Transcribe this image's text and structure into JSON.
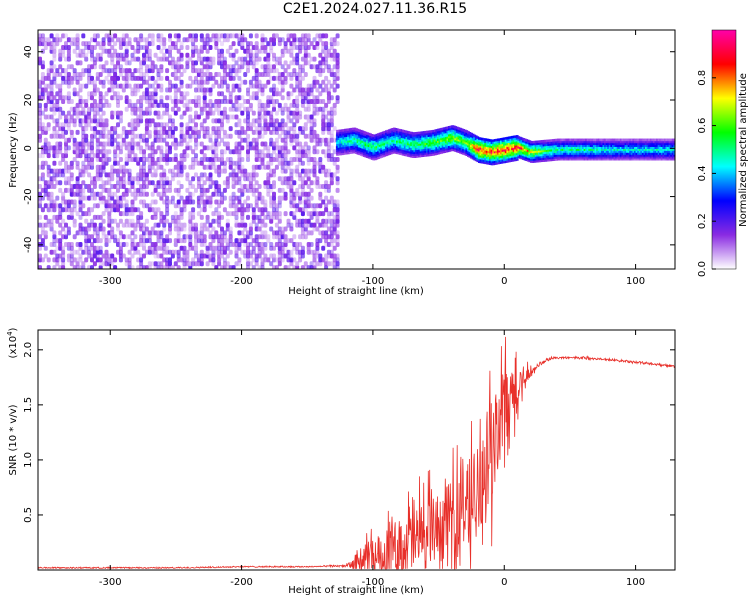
{
  "title": "C2E1.2024.027.11.36.R15",
  "chart_data": [
    {
      "type": "heatmap",
      "xlabel": "Height of straight line (km)",
      "ylabel": "Frequency (Hz)",
      "xlim": [
        -355,
        130
      ],
      "ylim": [
        -50,
        49
      ],
      "xticks": [
        -300,
        -200,
        -100,
        0,
        100
      ],
      "yticks": [
        -40,
        -20,
        0,
        20,
        40
      ],
      "colorbar": {
        "label": "Normalized spectral amplitude",
        "range": [
          0.0,
          1.0
        ],
        "ticks": [
          "0.0",
          "0.2",
          "0.4",
          "0.6",
          "0.8"
        ],
        "colormap": [
          "#ffffff",
          "#8a2be2",
          "#0000ff",
          "#00ffff",
          "#00ff00",
          "#ffff00",
          "#ff0000",
          "#ff00aa"
        ]
      },
      "regions": [
        {
          "x": [
            -355,
            -128
          ],
          "freq": [
            -50,
            49
          ],
          "amplitude": [
            0.0,
            0.25
          ]
        },
        {
          "x": [
            -128,
            130
          ],
          "freq_centre": 0,
          "amplitude": [
            0.3,
            1.0
          ]
        }
      ],
      "ridge": {
        "x": [
          -128,
          -115,
          -100,
          -85,
          -70,
          -55,
          -40,
          -30,
          -20,
          -10,
          0,
          10,
          20,
          40,
          60,
          80,
          100,
          130
        ],
        "freq": [
          3,
          4,
          1,
          4,
          2,
          3,
          5,
          3,
          0,
          -1,
          0,
          1,
          -1,
          0,
          0,
          0,
          0,
          0
        ],
        "amplitude": [
          0.45,
          0.5,
          0.55,
          0.5,
          0.55,
          0.6,
          0.65,
          0.6,
          0.9,
          0.85,
          0.9,
          0.85,
          0.7,
          0.5,
          0.5,
          0.45,
          0.45,
          0.45
        ]
      }
    },
    {
      "type": "line",
      "xlabel": "Height of straight line (km)",
      "ylabel": "SNR (10 * v/v)",
      "ylabel_multiplier": "(x10",
      "ylabel_multiplier_exp": "4",
      "ylabel_multiplier_close": ")",
      "xlim": [
        -355,
        130
      ],
      "ylim": [
        0,
        2.18
      ],
      "xticks": [
        -300,
        -200,
        -100,
        0,
        100
      ],
      "yticks": [
        0.5,
        1.0,
        1.5,
        2.0
      ],
      "ytick_labels": [
        "0.5",
        "1.0",
        "1.5",
        "2.0"
      ],
      "series": [
        {
          "color": "#e8302a",
          "x": [
            -355,
            -300,
            -250,
            -200,
            -150,
            -120,
            -110,
            -100,
            -90,
            -80,
            -70,
            -60,
            -50,
            -40,
            -30,
            -20,
            -10,
            -5,
            0,
            5,
            10,
            15,
            20,
            25,
            30,
            40,
            60,
            80,
            100,
            130
          ],
          "y": [
            0.02,
            0.02,
            0.02,
            0.03,
            0.03,
            0.04,
            0.08,
            0.15,
            0.18,
            0.25,
            0.3,
            0.35,
            0.4,
            0.5,
            0.65,
            0.8,
            1.1,
            1.3,
            1.5,
            1.55,
            1.65,
            1.75,
            1.8,
            1.85,
            1.9,
            1.93,
            1.93,
            1.91,
            1.89,
            1.85
          ],
          "noise": [
            0,
            0,
            0,
            0,
            0,
            0.01,
            0.15,
            0.25,
            0.3,
            0.35,
            0.4,
            0.45,
            0.45,
            0.5,
            0.5,
            0.55,
            0.6,
            0.55,
            0.5,
            0.45,
            0.4,
            0.2,
            0.05,
            0.02,
            0.02,
            0.01,
            0.01,
            0.01,
            0.01,
            0.01
          ]
        }
      ]
    }
  ]
}
